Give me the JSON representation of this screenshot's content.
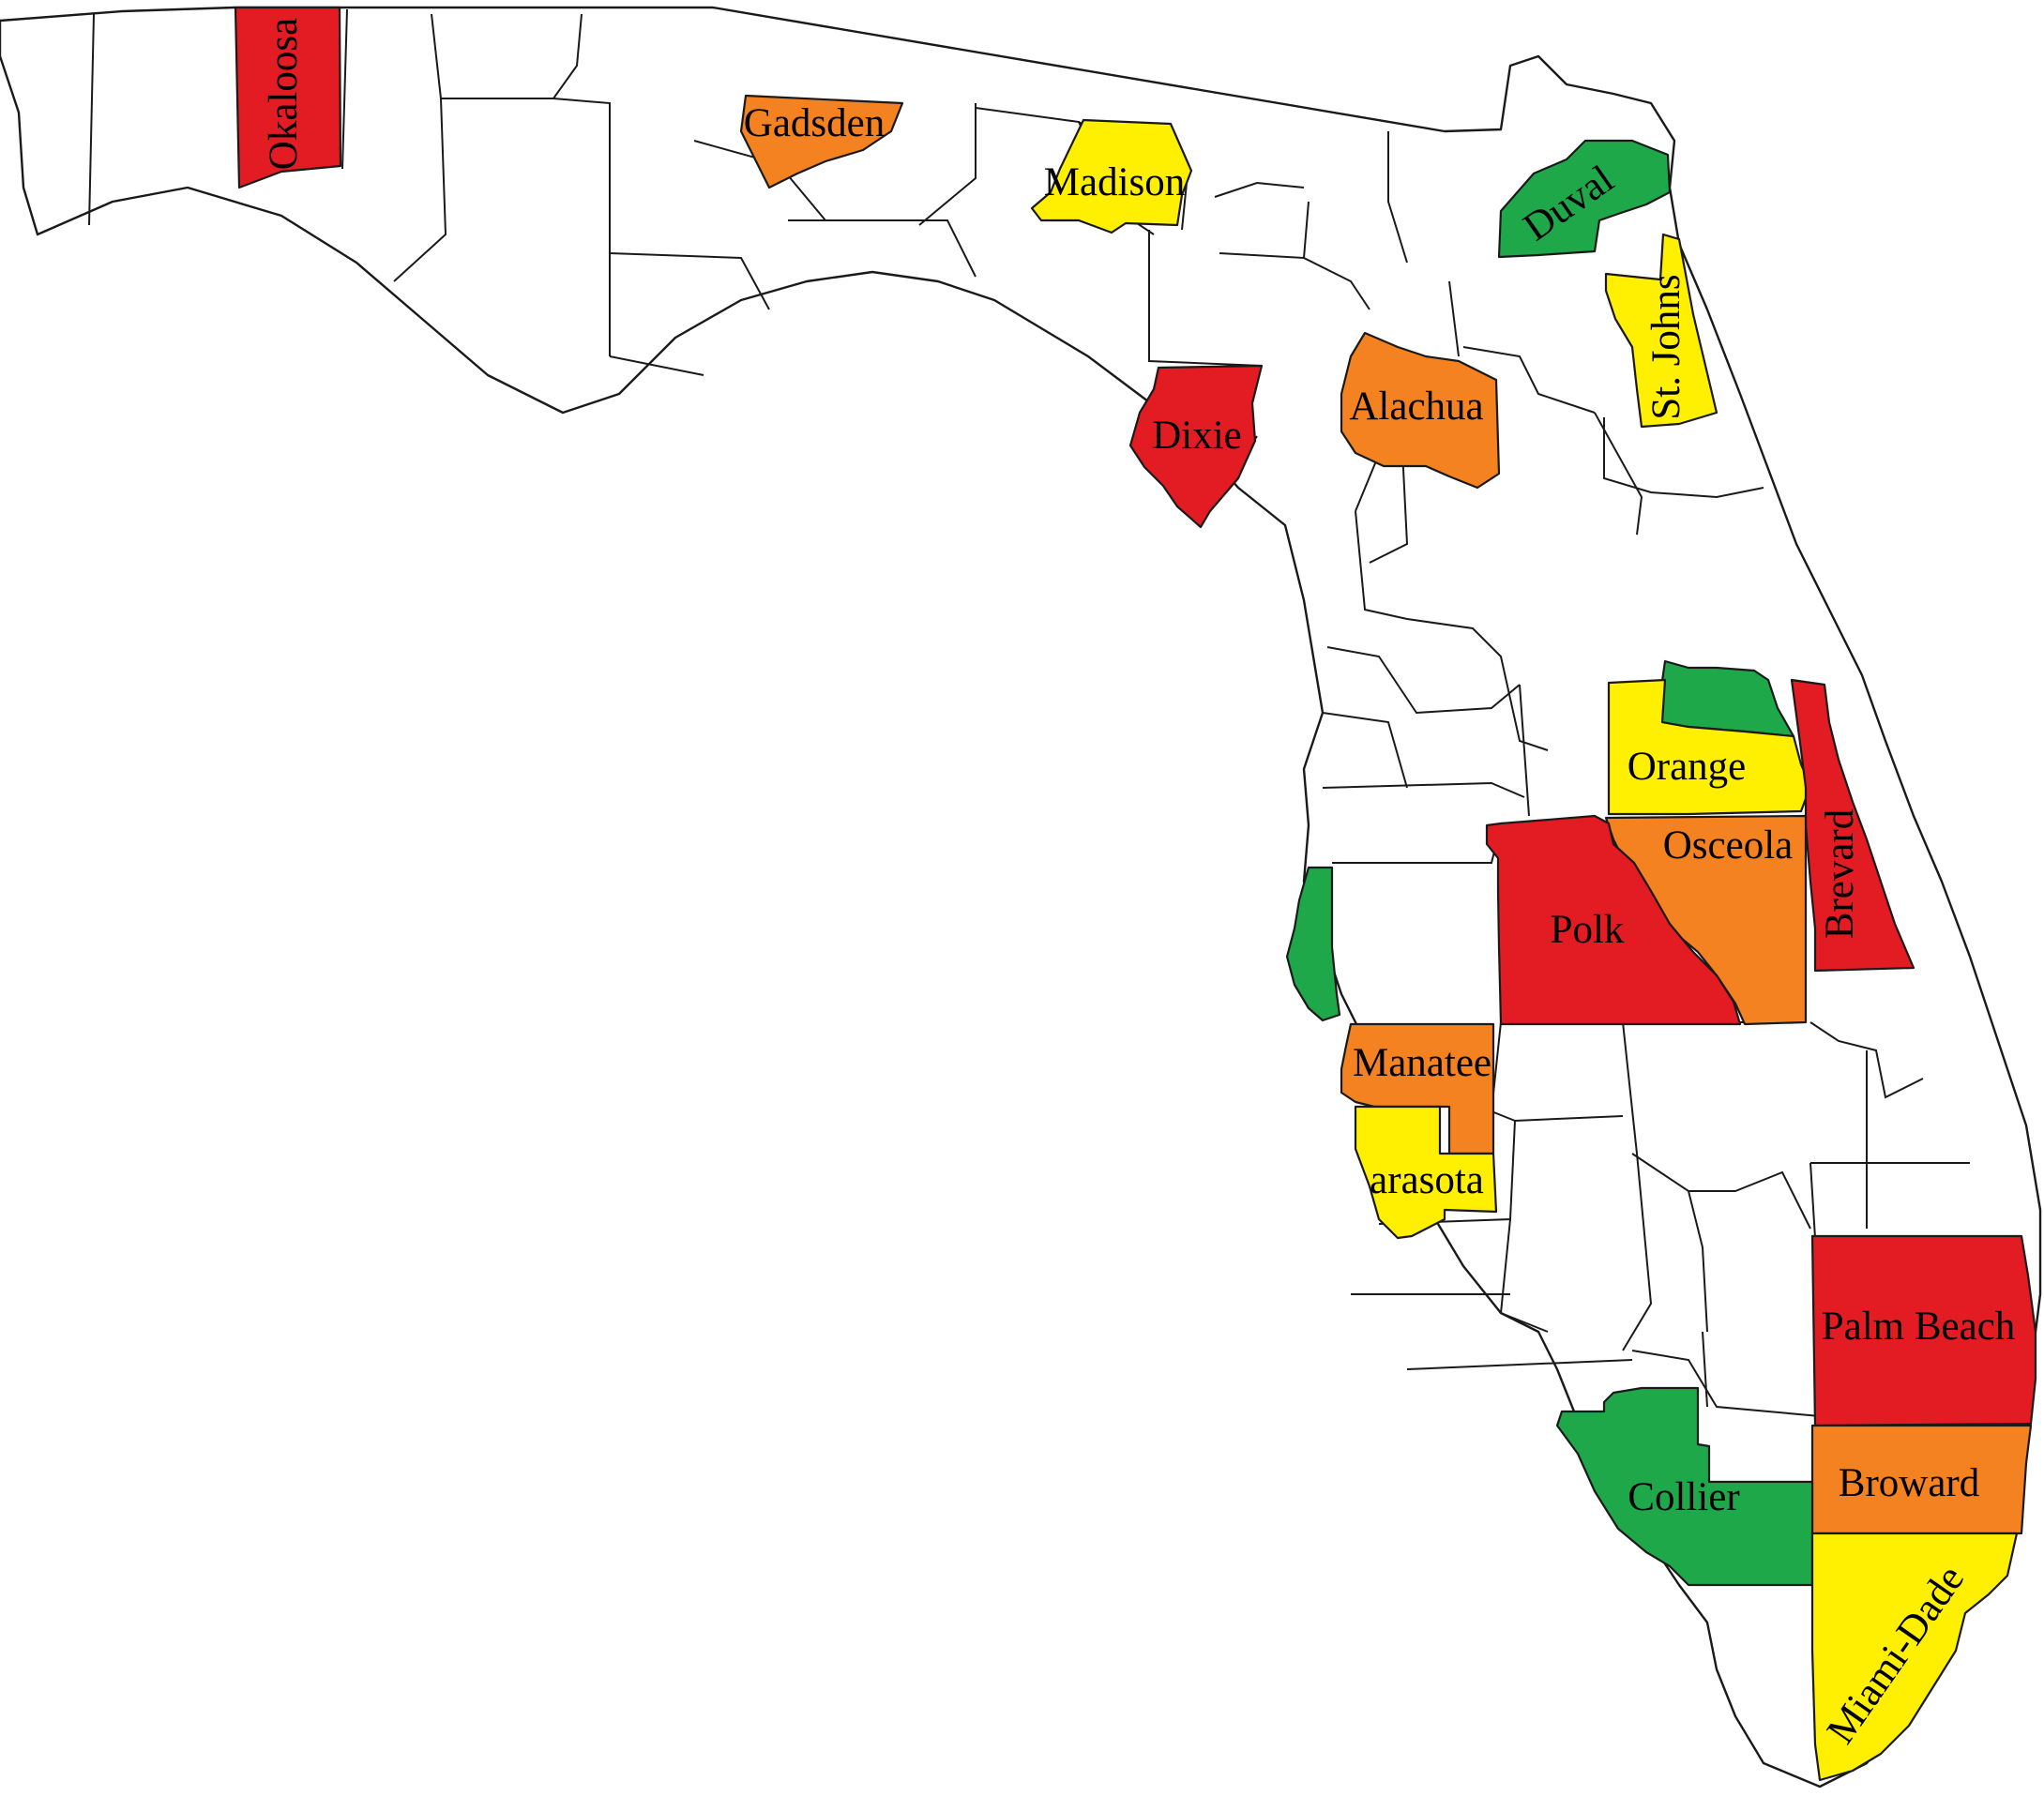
{
  "map": {
    "region": "Florida",
    "colors": {
      "red": "#e31b23",
      "orange": "#f58220",
      "yellow": "#ffef00",
      "green": "#1fa84a",
      "white": "#ffffff",
      "border": "#1a1a1a"
    },
    "counties": [
      {
        "id": "okaloosa",
        "label": "Okaloosa",
        "color": "red"
      },
      {
        "id": "gadsden",
        "label": "Gadsden",
        "color": "orange"
      },
      {
        "id": "madison",
        "label": "Madison",
        "color": "yellow"
      },
      {
        "id": "duval",
        "label": "Duval",
        "color": "green"
      },
      {
        "id": "st-johns",
        "label": "St. Johns",
        "color": "yellow"
      },
      {
        "id": "dixie",
        "label": "Dixie",
        "color": "red"
      },
      {
        "id": "alachua",
        "label": "Alachua",
        "color": "orange"
      },
      {
        "id": "seminole",
        "label": "",
        "color": "green"
      },
      {
        "id": "orange",
        "label": "Orange",
        "color": "yellow"
      },
      {
        "id": "brevard",
        "label": "Brevard",
        "color": "red"
      },
      {
        "id": "osceola",
        "label": "Osceola",
        "color": "orange"
      },
      {
        "id": "polk",
        "label": "Polk",
        "color": "red"
      },
      {
        "id": "pinellas",
        "label": "",
        "color": "green"
      },
      {
        "id": "manatee",
        "label": "Manatee",
        "color": "orange"
      },
      {
        "id": "sarasota",
        "label": "arasota",
        "color": "yellow"
      },
      {
        "id": "palm-beach",
        "label": "Palm Beach",
        "color": "red"
      },
      {
        "id": "broward",
        "label": "Broward",
        "color": "orange"
      },
      {
        "id": "collier",
        "label": "Collier",
        "color": "green"
      },
      {
        "id": "miami-dade",
        "label": "Miami-Dade",
        "color": "yellow"
      }
    ]
  }
}
